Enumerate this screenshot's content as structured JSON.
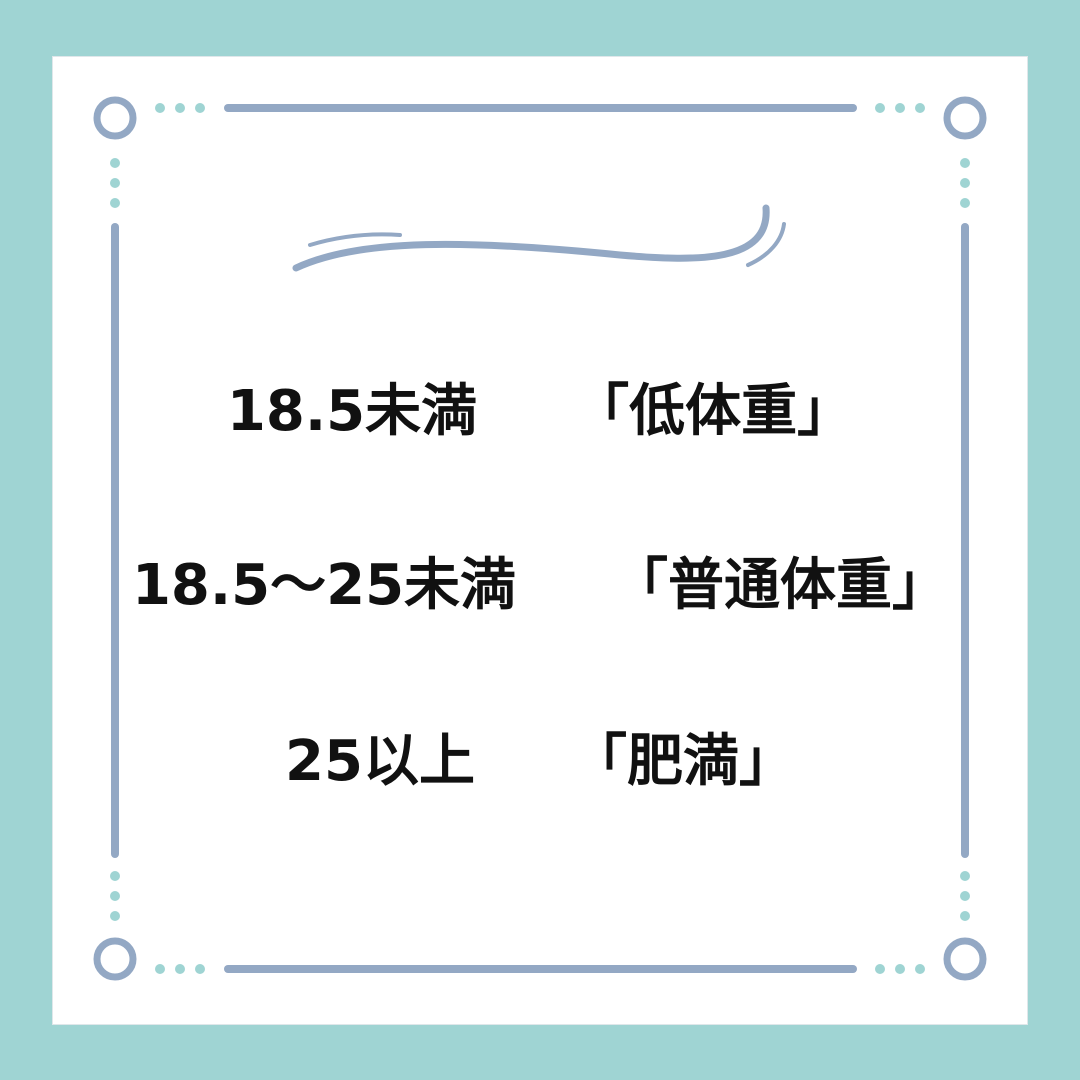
{
  "colors": {
    "background": "#9fd4d3",
    "card": "#ffffff",
    "line": "#93a8c4",
    "dots": "#9fd4d3",
    "text": "#111111"
  },
  "bmi_categories": [
    {
      "range": "18.5未満",
      "label": "「低体重」"
    },
    {
      "range": "18.5〜25未満",
      "label": "「普通体重」"
    },
    {
      "range": "25以上",
      "label": "「肥満」"
    }
  ]
}
